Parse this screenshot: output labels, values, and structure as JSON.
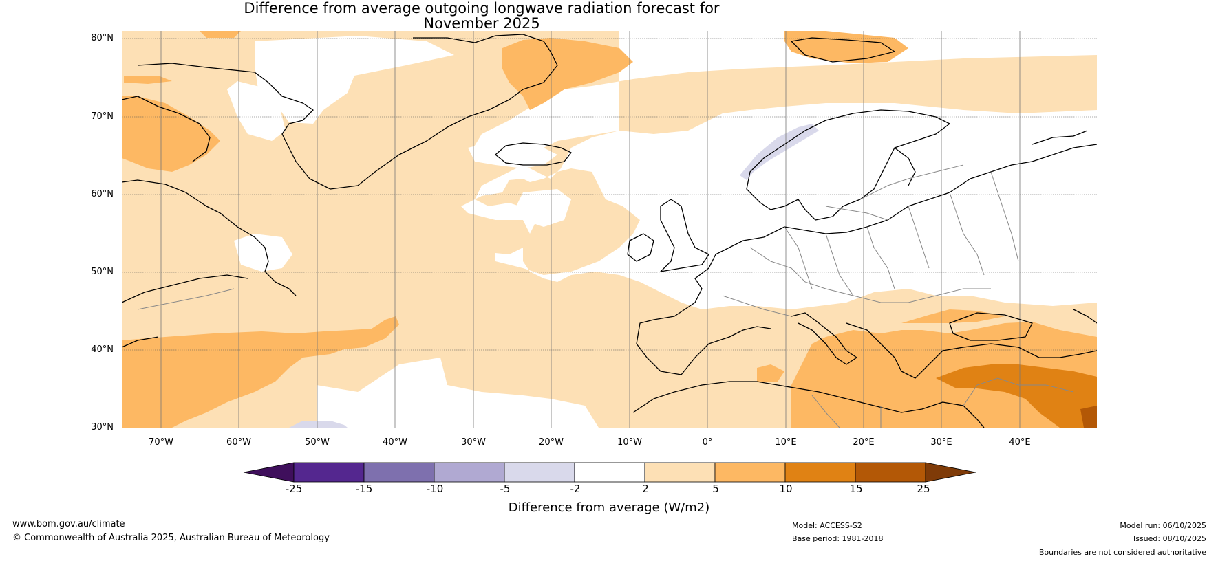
{
  "title_line1": "Difference from average outgoing longwave radiation forecast for",
  "title_line2": "November 2025",
  "lat_labels": [
    "80°N",
    "70°N",
    "60°N",
    "50°N",
    "40°N",
    "30°N"
  ],
  "lon_labels": [
    "70°W",
    "60°W",
    "50°W",
    "40°W",
    "30°W",
    "20°W",
    "10°W",
    "0°",
    "10°E",
    "20°E",
    "30°E",
    "40°E"
  ],
  "colorbar": {
    "title": "Difference from average (W/m2)",
    "bounds": [
      "-25",
      "-15",
      "-10",
      "-5",
      "-2",
      "2",
      "5",
      "10",
      "15",
      "25"
    ],
    "colors": [
      "#3f0f5c",
      "#54278f",
      "#7e70ae",
      "#b0a9d2",
      "#d9d9eb",
      "#ffffff",
      "#fde0b5",
      "#fdb863",
      "#e08214",
      "#b35806",
      "#7f3b08"
    ]
  },
  "footer": {
    "url": "www.bom.gov.au/climate",
    "copyright": "© Commonwealth of Australia 2025, Australian Bureau of Meteorology",
    "model": "Model: ACCESS-S2",
    "base_period": "Base period: 1981-2018",
    "model_run": "Model run: 06/10/2025",
    "issued": "Issued: 08/10/2025",
    "disclaimer": "Boundaries are not considered authoritative"
  }
}
